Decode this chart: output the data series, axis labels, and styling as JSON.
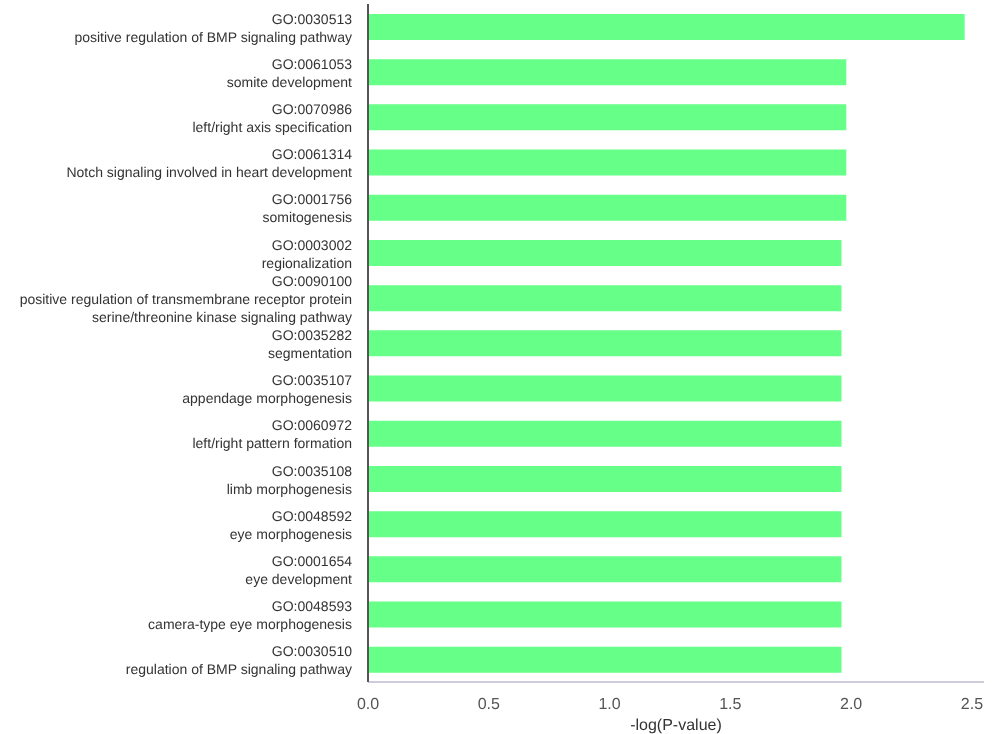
{
  "chart_data": {
    "type": "bar",
    "orientation": "horizontal",
    "xlabel": "-log(P-value)",
    "categories": [
      "GO:0030513\npositive regulation of BMP signaling pathway",
      "GO:0061053\nsomite development",
      "GO:0070986\nleft/right axis specification",
      "GO:0061314\nNotch signaling involved in heart development",
      "GO:0001756\nsomitogenesis",
      "GO:0003002\nregionalization",
      "GO:0090100\npositive regulation of transmembrane receptor protein\nserine/threonine kinase signaling pathway",
      "GO:0035282\nsegmentation",
      "GO:0035107\nappendage morphogenesis",
      "GO:0060972\nleft/right pattern formation",
      "GO:0035108\nlimb morphogenesis",
      "GO:0048592\neye morphogenesis",
      "GO:0001654\neye development",
      "GO:0048593\ncamera-type eye morphogenesis",
      "GO:0030510\nregulation of BMP signaling pathway"
    ],
    "values": [
      2.47,
      1.98,
      1.98,
      1.98,
      1.98,
      1.96,
      1.96,
      1.96,
      1.96,
      1.96,
      1.96,
      1.96,
      1.96,
      1.96,
      1.96
    ],
    "color": "#66ff88",
    "xlim": [
      0,
      2.55
    ],
    "xticks": [
      {
        "value": 0,
        "label": "0.0"
      },
      {
        "value": 0.5,
        "label": "0.5"
      },
      {
        "value": 1,
        "label": "1.0"
      },
      {
        "value": 1.5,
        "label": "1.5"
      },
      {
        "value": 2,
        "label": "2.0"
      },
      {
        "value": 2.5,
        "label": "2.5"
      }
    ],
    "grid": false
  }
}
